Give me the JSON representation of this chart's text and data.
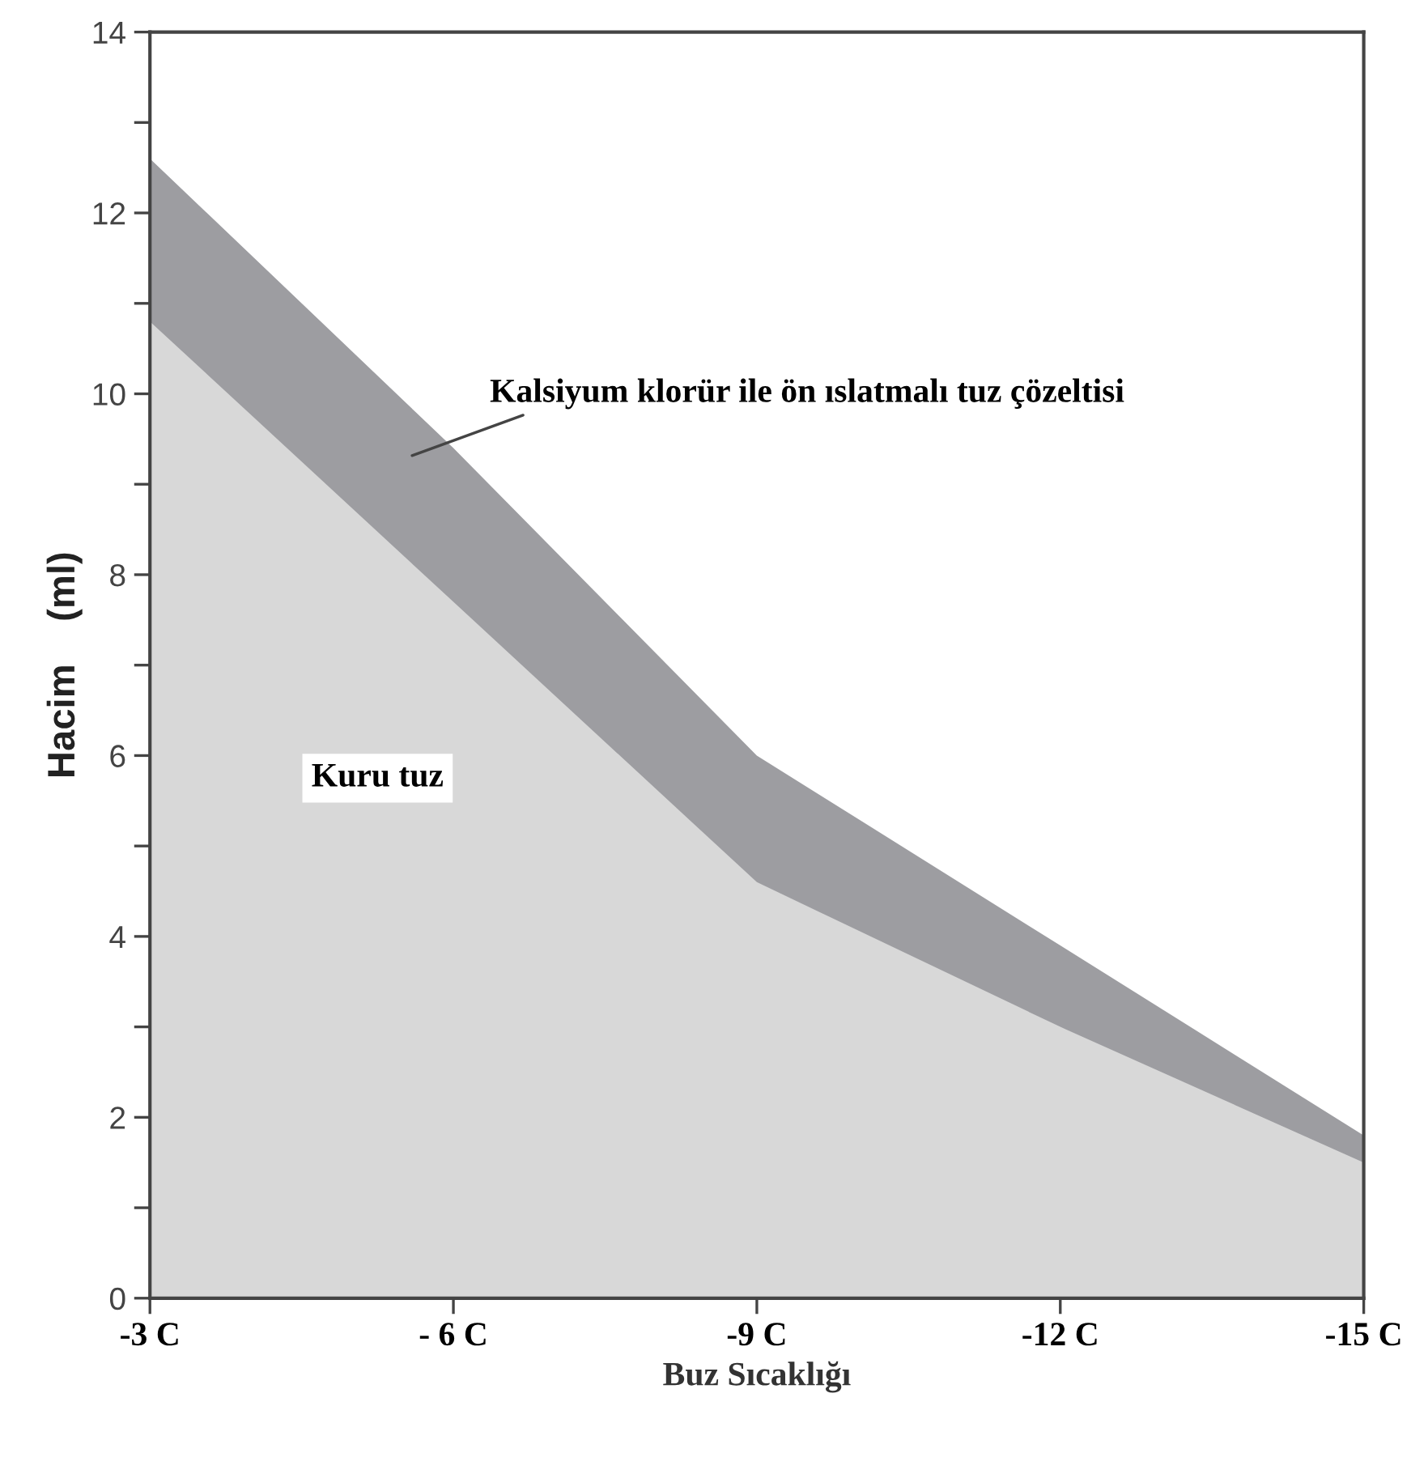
{
  "chart_data": {
    "type": "area",
    "categories": [
      "-3 C",
      "- 6 C",
      "-9 C",
      "-12 C",
      "-15 C"
    ],
    "series": [
      {
        "name": "Kalsiyum klorür ile ön ıslatmalı tuz çözeltisi",
        "color": "#9d9da1",
        "values": [
          12.6,
          9.4,
          6.0,
          3.9,
          1.8
        ]
      },
      {
        "name": "Kuru tuz",
        "color": "#d8d8d8",
        "values": [
          10.8,
          7.7,
          4.6,
          3.0,
          1.5
        ]
      }
    ],
    "xlabel": "Buz Sıcaklığı",
    "ylabel": "Hacim    (ml)",
    "ylim": [
      0,
      14
    ],
    "yticks": [
      0,
      {
        "value": 1,
        "label": null
      },
      2,
      {
        "value": 3,
        "label": null
      },
      4,
      {
        "value": 5,
        "label": null
      },
      6,
      {
        "value": 7,
        "label": null
      },
      8,
      {
        "value": 9,
        "label": null
      },
      10,
      {
        "value": 11,
        "label": null
      },
      12,
      {
        "value": 13,
        "label": null
      },
      14
    ],
    "grid": false,
    "legend": false
  }
}
